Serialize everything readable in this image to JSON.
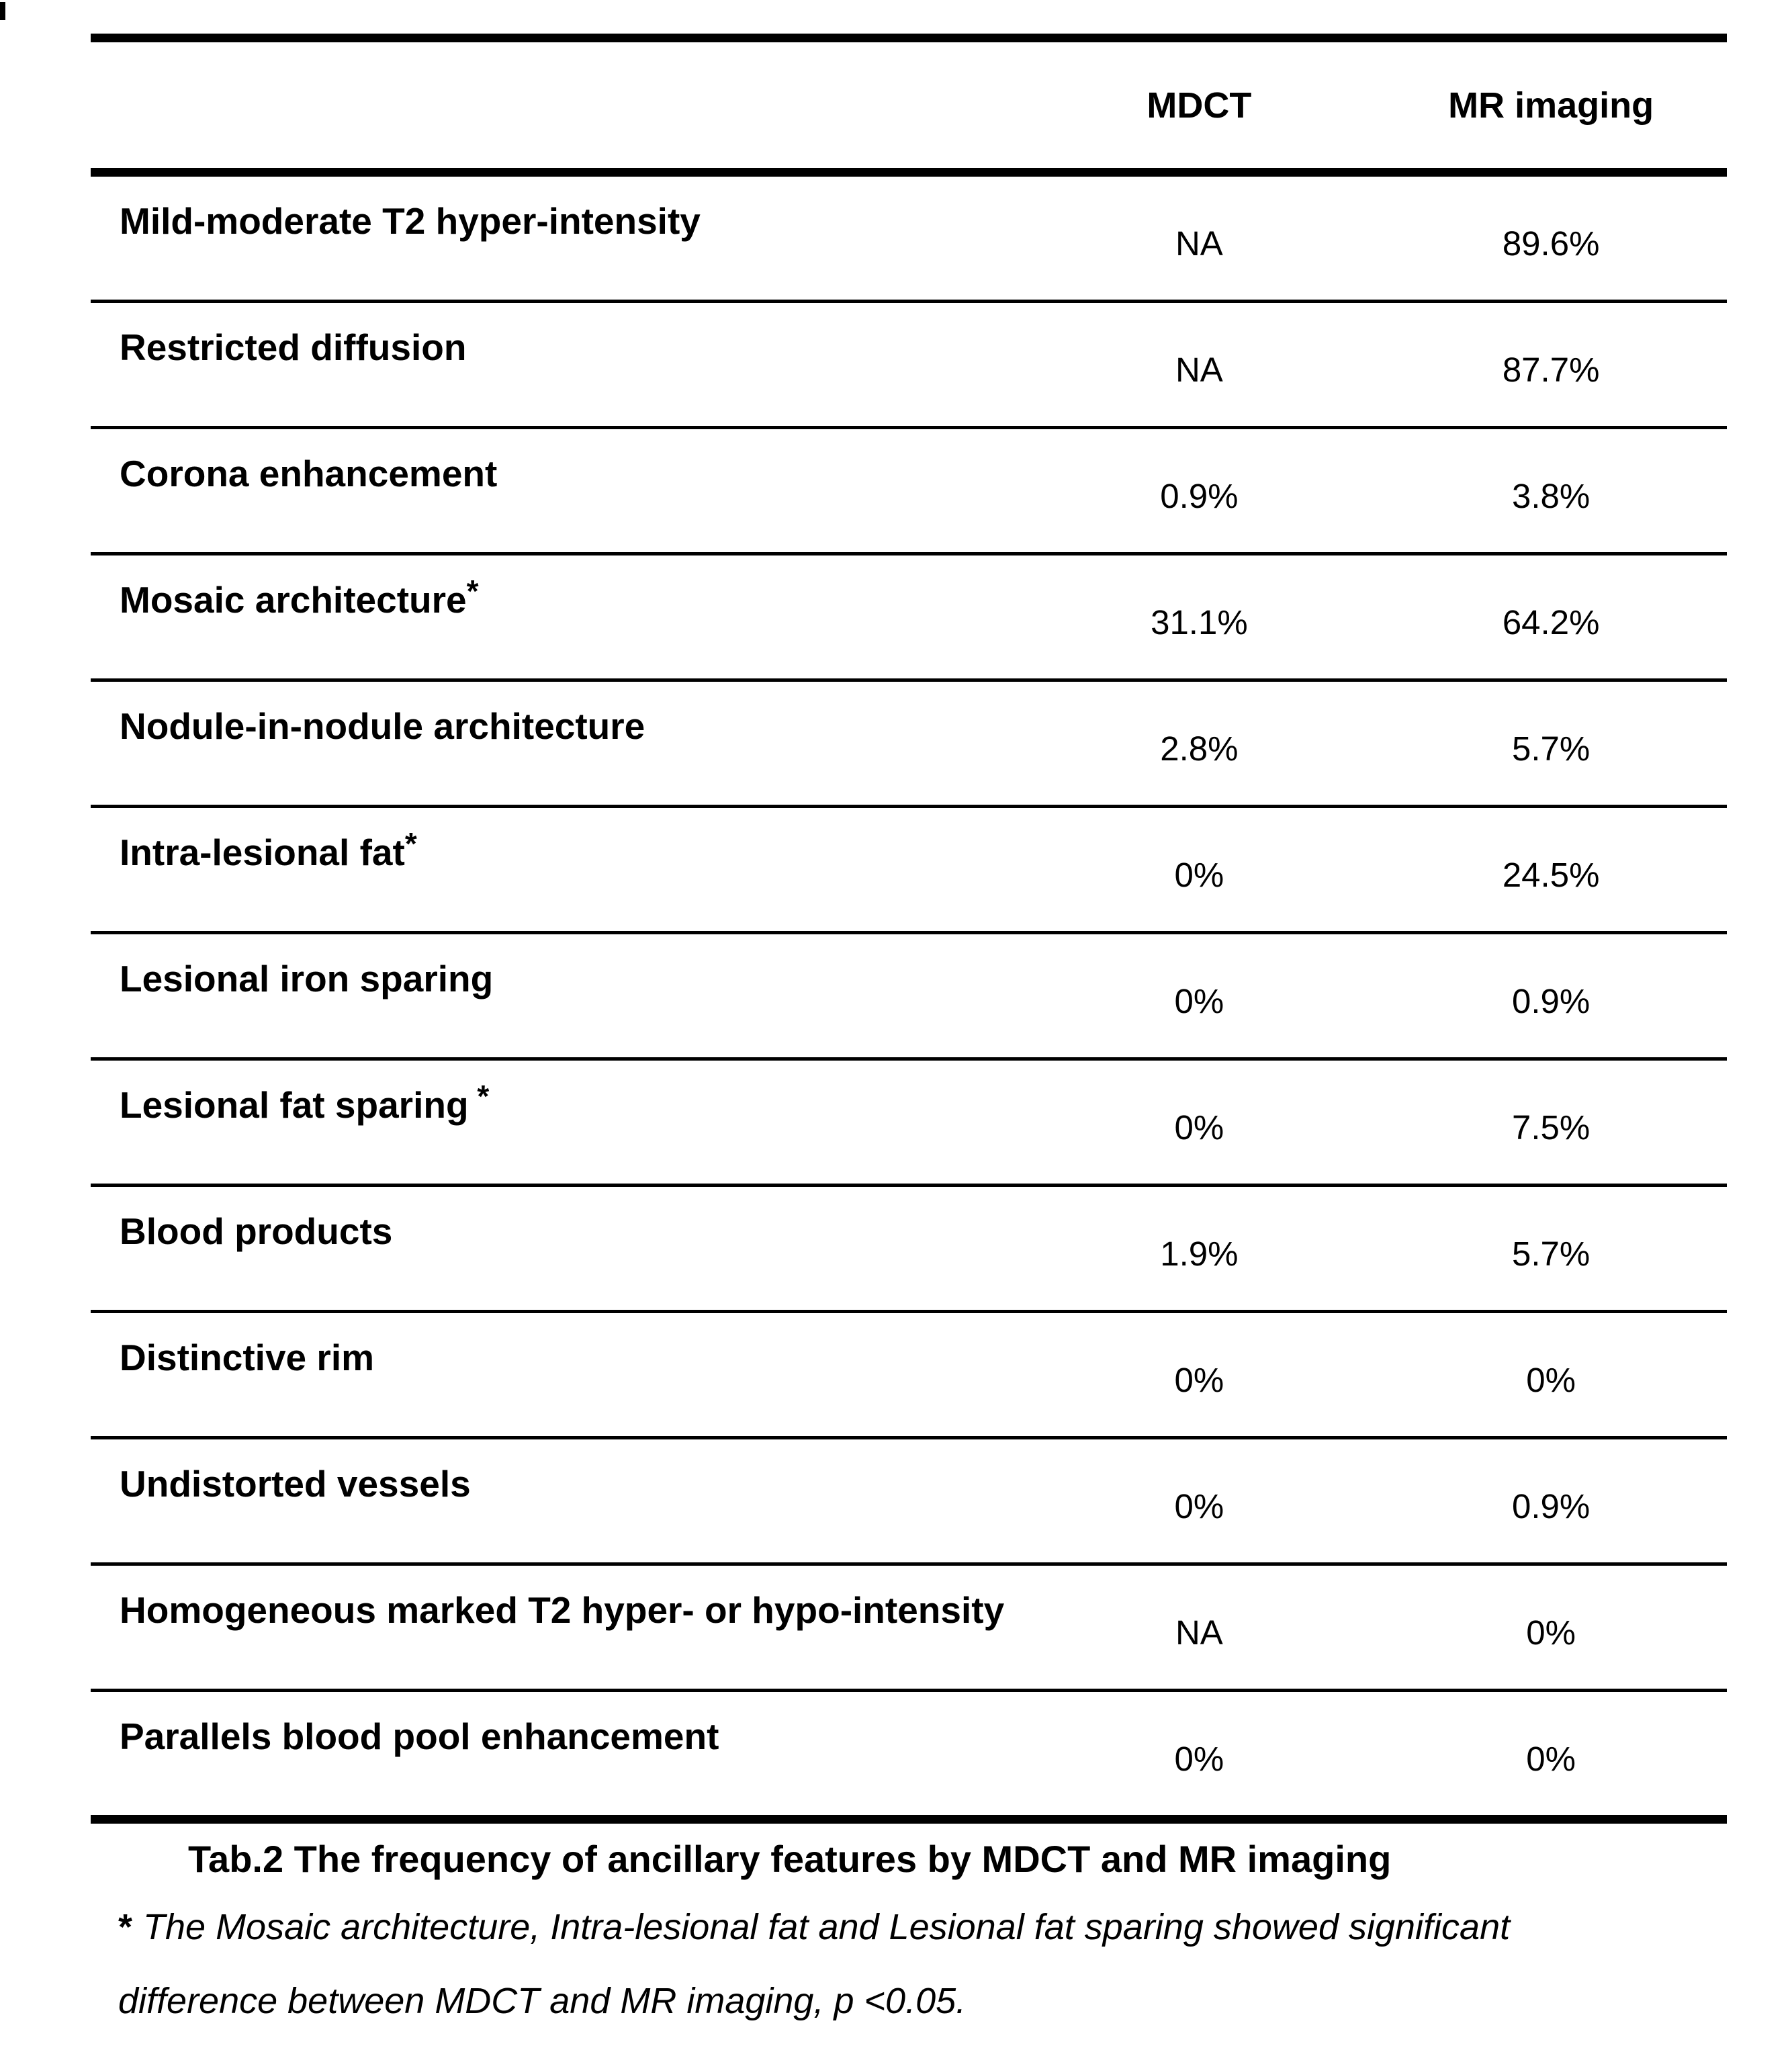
{
  "table": {
    "header": {
      "col_feature": "",
      "col_mdct": "MDCT",
      "col_mr": "MR imaging"
    },
    "rows": [
      {
        "feature": "Mild-moderate T2 hyper-intensity",
        "sup": "",
        "mdct": "NA",
        "mr": "89.6%"
      },
      {
        "feature": "Restricted diffusion",
        "sup": "",
        "mdct": "NA",
        "mr": "87.7%"
      },
      {
        "feature": "Corona enhancement",
        "sup": "",
        "mdct": "0.9%",
        "mr": "3.8%"
      },
      {
        "feature": "Mosaic architecture",
        "sup": "*",
        "mdct": "31.1%",
        "mr": "64.2%"
      },
      {
        "feature": "Nodule-in-nodule architecture",
        "sup": "",
        "mdct": "2.8%",
        "mr": "5.7%"
      },
      {
        "feature": "Intra-lesional fat",
        "sup": "*",
        "mdct": "0%",
        "mr": "24.5%"
      },
      {
        "feature": "Lesional iron sparing",
        "sup": "",
        "mdct": "0%",
        "mr": "0.9%"
      },
      {
        "feature": "Lesional fat sparing",
        "sup": " *",
        "mdct": "0%",
        "mr": "7.5%"
      },
      {
        "feature": "Blood products",
        "sup": "",
        "mdct": "1.9%",
        "mr": "5.7%"
      },
      {
        "feature": "Distinctive rim",
        "sup": "",
        "mdct": "0%",
        "mr": "0%"
      },
      {
        "feature": "Undistorted vessels",
        "sup": "",
        "mdct": "0%",
        "mr": "0.9%"
      },
      {
        "feature": "Homogeneous marked T2 hyper- or hypo-intensity",
        "sup": "",
        "mdct": "NA",
        "mr": "0%"
      },
      {
        "feature": "Parallels blood pool enhancement",
        "sup": "",
        "mdct": "0%",
        "mr": "0%"
      }
    ]
  },
  "caption": {
    "text": "Tab.2 The frequency of ancillary features by MDCT and MR imaging"
  },
  "footnote": {
    "marker": "*",
    "line1": "The Mosaic architecture, Intra-lesional fat and Lesional fat sparing showed significant",
    "line2": "difference between MDCT and MR imaging, p <0.05."
  },
  "colors": {
    "text": "#000000",
    "background": "#ffffff",
    "rule": "#000000"
  }
}
